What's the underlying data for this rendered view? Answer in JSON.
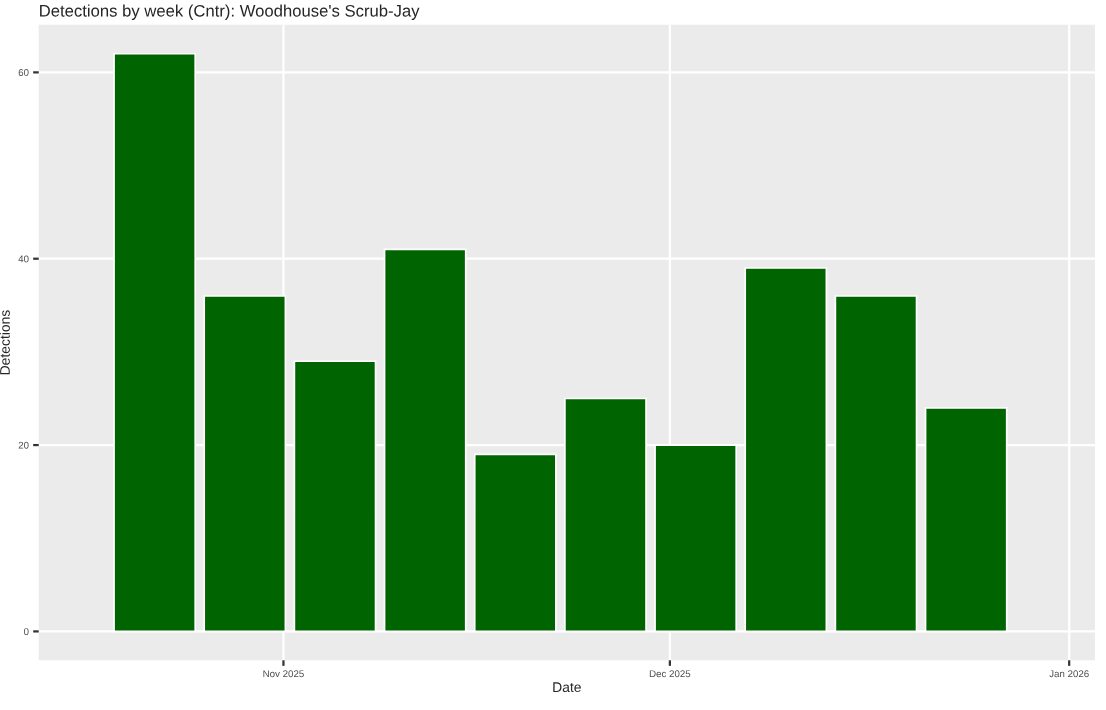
{
  "chart_data": {
    "type": "bar",
    "title": "Detections by week (Cntr): Woodhouse's Scrub-Jay",
    "xlabel": "Date",
    "ylabel": "Detections",
    "x": [
      "2025-10-22",
      "2025-10-29",
      "2025-11-05",
      "2025-11-12",
      "2025-11-19",
      "2025-11-26",
      "2025-12-03",
      "2025-12-10",
      "2025-12-17",
      "2025-12-24"
    ],
    "values": [
      62,
      36,
      29,
      41,
      19,
      25,
      20,
      39,
      36,
      24
    ],
    "color": "#006400",
    "xlim": [
      "2025-10-13",
      "2026-01-03"
    ],
    "xticks": [
      {
        "value": "2025-11-01",
        "label": "Nov 2025"
      },
      {
        "value": "2025-12-01",
        "label": "Dec 2025"
      },
      {
        "value": "2026-01-01",
        "label": "Jan 2026"
      }
    ],
    "ylim": [
      -3.1,
      65.1
    ],
    "yticks": [
      0,
      20,
      40,
      60
    ],
    "grid": true
  }
}
